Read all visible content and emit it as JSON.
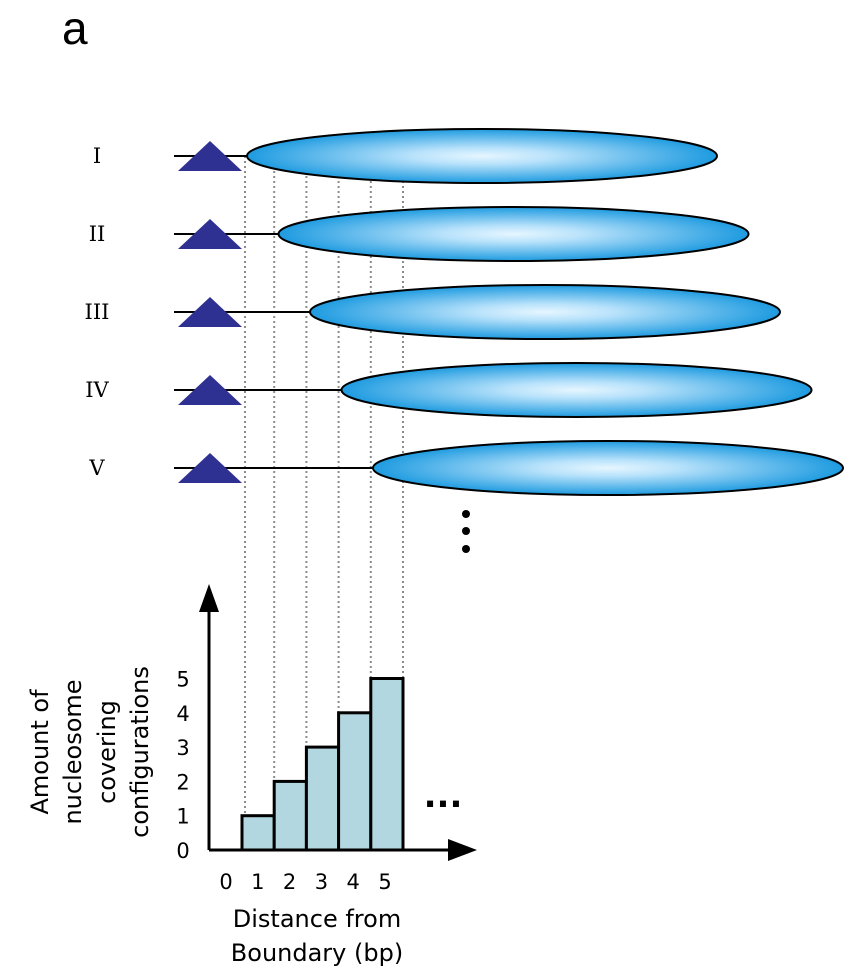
{
  "panel_label": "a",
  "configurations": [
    "I",
    "II",
    "III",
    "IV",
    "V"
  ],
  "continuation_mark": "...",
  "colors": {
    "boundary_triangle": "#2e3192",
    "nucleosome_fill_center": "#e6f6ff",
    "nucleosome_fill_edge": "#1e9be0",
    "bar_fill": "#b3d7e0",
    "guide_line": "#8c8c8c"
  },
  "icons": {
    "boundary": "triangle-icon",
    "nucleosome": "ellipse-icon"
  },
  "chart_data": {
    "type": "bar",
    "categories": [
      "1",
      "2",
      "3",
      "4",
      "5"
    ],
    "values": [
      1,
      2,
      3,
      4,
      5
    ],
    "x_ticks": [
      "0",
      "1",
      "2",
      "3",
      "4",
      "5"
    ],
    "y_ticks": [
      "0",
      "1",
      "2",
      "3",
      "4",
      "5"
    ],
    "ylim": [
      0,
      5.5
    ],
    "xlabel_lines": [
      "Distance from",
      "Boundary (bp)"
    ],
    "ylabel_lines": [
      "Amount of",
      "nucleosome",
      "covering",
      "configurations"
    ],
    "continuation_mark": "...",
    "grid": false
  }
}
